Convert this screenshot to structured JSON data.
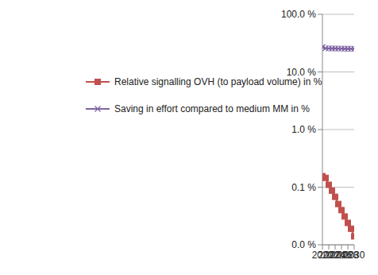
{
  "chart_data": {
    "type": "line",
    "x": [
      2020,
      2021,
      2022,
      2023,
      2024,
      2025,
      2026,
      2027,
      2028,
      2029,
      2030
    ],
    "xlim": [
      2020,
      2030
    ],
    "xticks": [
      2020,
      2022,
      2024,
      2026,
      2028,
      2030
    ],
    "ylim": [
      0.01,
      100
    ],
    "yticks": [
      {
        "value": 0.01,
        "label": "0.0 %"
      },
      {
        "value": 0.1,
        "label": "0.1 %"
      },
      {
        "value": 1,
        "label": "1.0 %"
      },
      {
        "value": 10,
        "label": "10.0 %"
      },
      {
        "value": 100,
        "label": "100.0 %"
      }
    ],
    "log": "y",
    "grid": true,
    "legend": "center",
    "series": [
      {
        "name": "Relative signalling OVH (to payload volume) in %",
        "color": "#c0504d",
        "marker": "square",
        "values": [
          0.155,
          0.145,
          0.11,
          0.087,
          0.068,
          0.051,
          0.04,
          0.031,
          0.024,
          0.019,
          0.014
        ]
      },
      {
        "name": "Saving in effort compared to medium MM in %",
        "color": "#8064a2",
        "marker": "x",
        "values": [
          27,
          25.8,
          25.6,
          25.5,
          25.5,
          25.4,
          25.4,
          25.3,
          25.3,
          25.2,
          25.2
        ]
      }
    ]
  }
}
